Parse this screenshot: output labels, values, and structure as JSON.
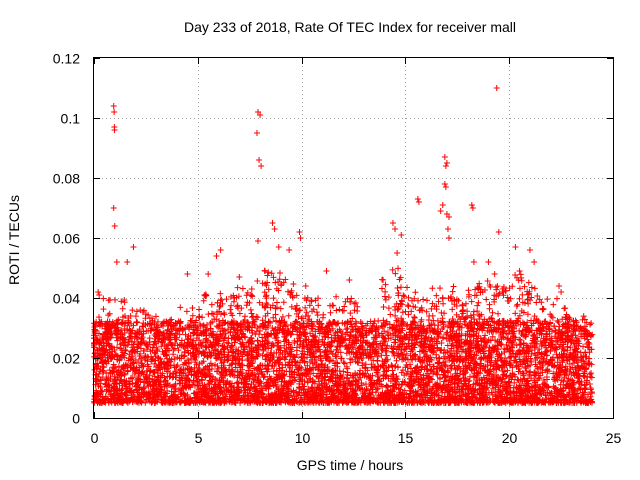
{
  "chart_data": {
    "type": "scatter",
    "title": "Day 233 of 2018, Rate Of TEC Index for receiver mall",
    "xlabel": "GPS time / hours",
    "ylabel": "ROTI / TECUs",
    "xlim": [
      0,
      25
    ],
    "ylim": [
      0,
      0.12
    ],
    "x_ticks": [
      0,
      5,
      10,
      15,
      20,
      25
    ],
    "y_ticks": [
      0,
      0.02,
      0.04,
      0.06,
      0.08,
      0.1,
      0.12
    ],
    "x_tick_labels": [
      "0",
      "5",
      "10",
      "15",
      "20",
      "25"
    ],
    "y_tick_labels": [
      "0",
      "0.02",
      "0.04",
      "0.06",
      "0.08",
      "0.1",
      "0.12"
    ],
    "grid": true,
    "marker": "+",
    "marker_color": "#ff0000",
    "data_x_range_hours": [
      0,
      24
    ],
    "dense_band_roti_range": [
      0.005,
      0.03
    ],
    "series": [
      {
        "name": "ROTI",
        "notable_points": [
          {
            "x": 0.2,
            "y": 0.042
          },
          {
            "x": 0.25,
            "y": 0.041
          },
          {
            "x": 0.95,
            "y": 0.104
          },
          {
            "x": 0.97,
            "y": 0.102
          },
          {
            "x": 0.98,
            "y": 0.097
          },
          {
            "x": 0.99,
            "y": 0.096
          },
          {
            "x": 0.95,
            "y": 0.07
          },
          {
            "x": 1.0,
            "y": 0.064
          },
          {
            "x": 1.1,
            "y": 0.052
          },
          {
            "x": 1.6,
            "y": 0.052
          },
          {
            "x": 1.9,
            "y": 0.057
          },
          {
            "x": 4.5,
            "y": 0.048
          },
          {
            "x": 5.5,
            "y": 0.048
          },
          {
            "x": 5.9,
            "y": 0.054
          },
          {
            "x": 6.1,
            "y": 0.056
          },
          {
            "x": 7.0,
            "y": 0.047
          },
          {
            "x": 7.9,
            "y": 0.102
          },
          {
            "x": 8.0,
            "y": 0.101
          },
          {
            "x": 7.85,
            "y": 0.095
          },
          {
            "x": 7.95,
            "y": 0.086
          },
          {
            "x": 8.05,
            "y": 0.084
          },
          {
            "x": 7.9,
            "y": 0.059
          },
          {
            "x": 8.6,
            "y": 0.065
          },
          {
            "x": 8.7,
            "y": 0.063
          },
          {
            "x": 8.9,
            "y": 0.057
          },
          {
            "x": 9.4,
            "y": 0.056
          },
          {
            "x": 9.9,
            "y": 0.062
          },
          {
            "x": 9.95,
            "y": 0.06
          },
          {
            "x": 10.2,
            "y": 0.044
          },
          {
            "x": 11.2,
            "y": 0.049
          },
          {
            "x": 12.3,
            "y": 0.046
          },
          {
            "x": 14.4,
            "y": 0.065
          },
          {
            "x": 14.5,
            "y": 0.063
          },
          {
            "x": 14.6,
            "y": 0.055
          },
          {
            "x": 14.8,
            "y": 0.061
          },
          {
            "x": 15.6,
            "y": 0.073
          },
          {
            "x": 15.65,
            "y": 0.072
          },
          {
            "x": 16.7,
            "y": 0.069
          },
          {
            "x": 16.9,
            "y": 0.087
          },
          {
            "x": 17.0,
            "y": 0.085
          },
          {
            "x": 16.95,
            "y": 0.084
          },
          {
            "x": 16.9,
            "y": 0.078
          },
          {
            "x": 16.95,
            "y": 0.077
          },
          {
            "x": 16.8,
            "y": 0.071
          },
          {
            "x": 17.0,
            "y": 0.068
          },
          {
            "x": 17.1,
            "y": 0.067
          },
          {
            "x": 17.05,
            "y": 0.063
          },
          {
            "x": 17.1,
            "y": 0.06
          },
          {
            "x": 18.2,
            "y": 0.071
          },
          {
            "x": 18.25,
            "y": 0.07
          },
          {
            "x": 18.3,
            "y": 0.052
          },
          {
            "x": 19.4,
            "y": 0.11
          },
          {
            "x": 19.5,
            "y": 0.062
          },
          {
            "x": 19.0,
            "y": 0.052
          },
          {
            "x": 19.3,
            "y": 0.048
          },
          {
            "x": 20.3,
            "y": 0.057
          },
          {
            "x": 20.5,
            "y": 0.049
          },
          {
            "x": 21.0,
            "y": 0.056
          },
          {
            "x": 21.2,
            "y": 0.052
          },
          {
            "x": 22.4,
            "y": 0.044
          },
          {
            "x": 22.5,
            "y": 0.042
          }
        ]
      }
    ]
  }
}
